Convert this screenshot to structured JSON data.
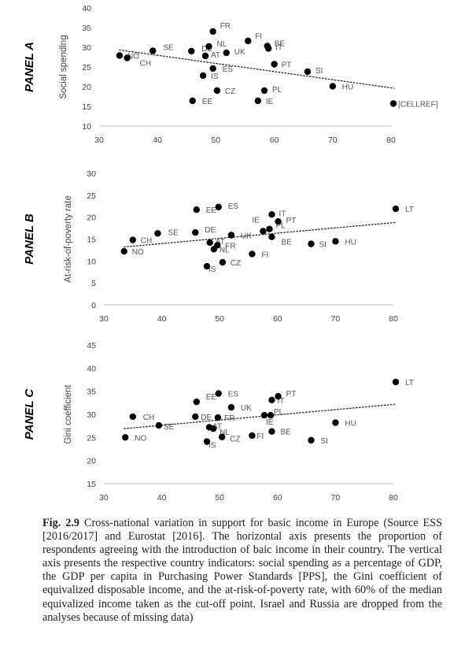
{
  "caption": {
    "label": "Fig. 2.9",
    "text": "Cross-national variation in support for basic income in Europe (Source ESS [2016/2017] and Eurostat [2016]. The horizontal axis presents the proportion of respondents agreeing with the introduction of baic income in their country. The vertical axis presents the respective country indicators: social spending as a percentage of GDP, the GDP per capita in Purchasing Power Standards [PPS], the Gini coefficient of equivalized disposable income, and the at-risk-of-poverty rate, with 60% of the median equivalized income taken as the cut-off point. Israel and Russia are dropped from the analyses because of missing data)"
  },
  "chart_data": [
    {
      "type": "scatter",
      "panel_title": "PANEL A",
      "ylabel": "Social spending",
      "xlim": [
        30,
        80
      ],
      "ylim": [
        10,
        40
      ],
      "xticks": [
        30,
        40,
        50,
        60,
        70,
        80
      ],
      "yticks": [
        10,
        15,
        20,
        25,
        30,
        35,
        40
      ],
      "grid": false,
      "trendline": [
        [
          33.5,
          29.3
        ],
        [
          80.5,
          19.6
        ]
      ],
      "points": [
        {
          "label": "NO",
          "x": 33.5,
          "y": 27.9
        },
        {
          "label": "CH",
          "x": 34.8,
          "y": 27.3
        },
        {
          "label": "SE",
          "x": 39.2,
          "y": 29.1
        },
        {
          "label": "DE",
          "x": 45.8,
          "y": 29.0
        },
        {
          "label": "NL",
          "x": 48.8,
          "y": 30.2
        },
        {
          "label": "AT",
          "x": 48.2,
          "y": 27.8
        },
        {
          "label": "FR",
          "x": 49.5,
          "y": 34.0
        },
        {
          "label": "UK",
          "x": 51.8,
          "y": 28.6
        },
        {
          "label": "ES",
          "x": 49.5,
          "y": 24.6
        },
        {
          "label": "IS",
          "x": 47.8,
          "y": 22.8
        },
        {
          "label": "CZ",
          "x": 50.2,
          "y": 19.0
        },
        {
          "label": "EE",
          "x": 46.0,
          "y": 16.4
        },
        {
          "label": "FI",
          "x": 55.5,
          "y": 31.6
        },
        {
          "label": "BE",
          "x": 58.8,
          "y": 30.3
        },
        {
          "label": "IT",
          "x": 59.0,
          "y": 29.7
        },
        {
          "label": "PT",
          "x": 60.0,
          "y": 25.7
        },
        {
          "label": "PL",
          "x": 58.3,
          "y": 19.0
        },
        {
          "label": "IE",
          "x": 57.2,
          "y": 16.4
        },
        {
          "label": "SI",
          "x": 65.7,
          "y": 23.8
        },
        {
          "label": "HU",
          "x": 70.0,
          "y": 20.1
        },
        {
          "label": "[CELLREF]",
          "x": 80.4,
          "y": 15.7
        }
      ]
    },
    {
      "type": "scatter",
      "panel_title": "PANEL B",
      "ylabel": "At-risk-of-poverty rate",
      "xlim": [
        30,
        80
      ],
      "ylim": [
        0,
        30
      ],
      "xticks": [
        30,
        40,
        50,
        60,
        70,
        80
      ],
      "yticks": [
        0,
        5,
        10,
        15,
        20,
        25,
        30
      ],
      "grid": false,
      "trendline": [
        [
          33.5,
          13.2
        ],
        [
          80.5,
          18.8
        ]
      ],
      "points": [
        {
          "label": "NO",
          "x": 33.5,
          "y": 12.2
        },
        {
          "label": "CH",
          "x": 35.0,
          "y": 14.8
        },
        {
          "label": "SE",
          "x": 39.3,
          "y": 16.3
        },
        {
          "label": "DE",
          "x": 45.8,
          "y": 16.5
        },
        {
          "label": "EE",
          "x": 46.0,
          "y": 21.7
        },
        {
          "label": "ES",
          "x": 49.8,
          "y": 22.3
        },
        {
          "label": "AT",
          "x": 48.3,
          "y": 14.2
        },
        {
          "label": "FR",
          "x": 49.6,
          "y": 13.6
        },
        {
          "label": "NL",
          "x": 49.0,
          "y": 12.7
        },
        {
          "label": "IS",
          "x": 47.8,
          "y": 8.8
        },
        {
          "label": "CZ",
          "x": 50.5,
          "y": 9.7
        },
        {
          "label": "UK",
          "x": 52.0,
          "y": 15.9
        },
        {
          "label": "IE",
          "x": 57.5,
          "y": 16.8
        },
        {
          "label": "PL",
          "x": 58.6,
          "y": 17.3
        },
        {
          "label": "IT",
          "x": 59.0,
          "y": 20.6
        },
        {
          "label": "PT",
          "x": 60.1,
          "y": 19.0
        },
        {
          "label": "BE",
          "x": 59.0,
          "y": 15.5
        },
        {
          "label": "FI",
          "x": 55.6,
          "y": 11.6
        },
        {
          "label": "SI",
          "x": 65.8,
          "y": 13.9
        },
        {
          "label": "HU",
          "x": 70.0,
          "y": 14.5
        },
        {
          "label": "LT",
          "x": 80.4,
          "y": 21.9
        }
      ]
    },
    {
      "type": "scatter",
      "panel_title": "PANEL C",
      "ylabel": "Gini coefficient",
      "xlim": [
        30,
        80
      ],
      "ylim": [
        15,
        45
      ],
      "xticks": [
        30,
        40,
        50,
        60,
        70,
        80
      ],
      "yticks": [
        15,
        20,
        25,
        30,
        35,
        40,
        45
      ],
      "grid": false,
      "trendline": [
        [
          33.5,
          26.9
        ],
        [
          80.5,
          32.2
        ]
      ],
      "points": [
        {
          "label": "NO",
          "x": 33.7,
          "y": 25.0
        },
        {
          "label": "CH",
          "x": 35.0,
          "y": 29.5
        },
        {
          "label": "SE",
          "x": 39.5,
          "y": 27.6
        },
        {
          "label": "DE",
          "x": 45.8,
          "y": 29.5
        },
        {
          "label": "EE",
          "x": 46.0,
          "y": 32.7
        },
        {
          "label": "ES",
          "x": 49.8,
          "y": 34.5
        },
        {
          "label": "FR",
          "x": 49.7,
          "y": 29.3
        },
        {
          "label": "AT",
          "x": 48.2,
          "y": 27.2
        },
        {
          "label": "NL",
          "x": 48.9,
          "y": 26.9
        },
        {
          "label": "IS",
          "x": 47.8,
          "y": 24.1
        },
        {
          "label": "CZ",
          "x": 50.4,
          "y": 25.1
        },
        {
          "label": "UK",
          "x": 52.0,
          "y": 31.5
        },
        {
          "label": "PL",
          "x": 57.7,
          "y": 29.8
        },
        {
          "label": "IE",
          "x": 58.8,
          "y": 29.8
        },
        {
          "label": "IT",
          "x": 59.0,
          "y": 33.1
        },
        {
          "label": "PT",
          "x": 60.1,
          "y": 33.9
        },
        {
          "label": "BE",
          "x": 59.0,
          "y": 26.3
        },
        {
          "label": "FI",
          "x": 55.6,
          "y": 25.4
        },
        {
          "label": "SI",
          "x": 65.8,
          "y": 24.4
        },
        {
          "label": "HU",
          "x": 70.0,
          "y": 28.2
        },
        {
          "label": "LT",
          "x": 80.4,
          "y": 37.0
        }
      ]
    }
  ]
}
